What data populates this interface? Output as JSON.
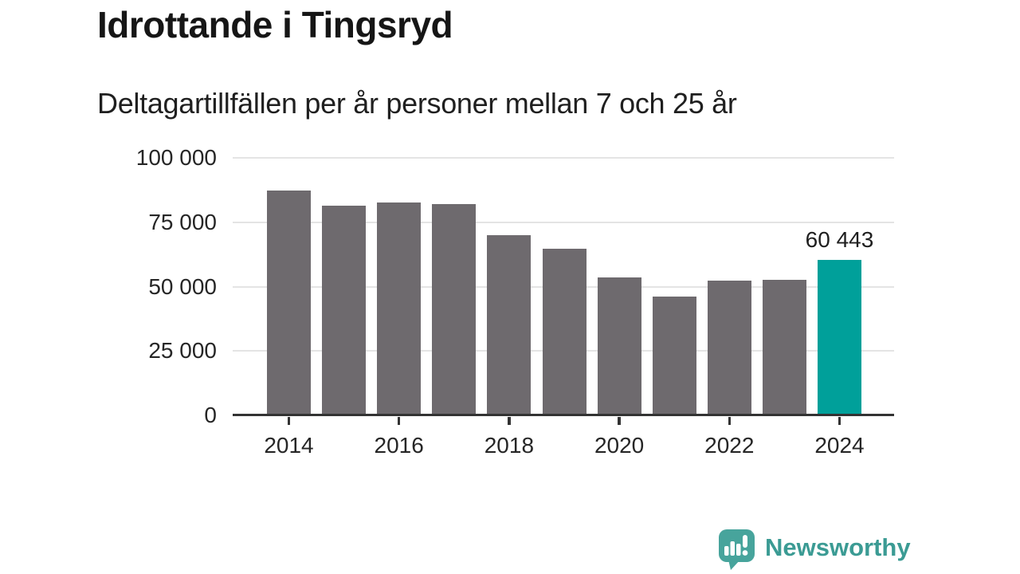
{
  "chart_data": {
    "type": "bar",
    "title": "Idrottande i Tingsryd",
    "subtitle": "Deltagartillfällen per år personer mellan 7 och 25 år",
    "categories": [
      "2014",
      "2015",
      "2016",
      "2017",
      "2018",
      "2019",
      "2020",
      "2021",
      "2022",
      "2023",
      "2024"
    ],
    "values": [
      87300,
      81500,
      82700,
      82100,
      69900,
      64600,
      53600,
      46000,
      52400,
      52700,
      60443
    ],
    "highlight_category": "2024",
    "highlight_index": 10,
    "annotation": {
      "text": "60 443",
      "category": "2024"
    },
    "ylim": [
      0,
      100000
    ],
    "yticks": [
      {
        "value": 0,
        "label": "0"
      },
      {
        "value": 25000,
        "label": "25 000"
      },
      {
        "value": 50000,
        "label": "50 000"
      },
      {
        "value": 75000,
        "label": "75 000"
      },
      {
        "value": 100000,
        "label": "100 000"
      }
    ],
    "xtick_years": [
      "2014",
      "2016",
      "2018",
      "2020",
      "2022",
      "2024"
    ],
    "grid": true,
    "legend": false,
    "colors": {
      "bar": "#6e6a6e",
      "highlight": "#00a09a",
      "grid": "#e4e4e4",
      "axis": "#333333",
      "text": "#262626"
    }
  },
  "footer": {
    "brand": "Newsworthy",
    "brand_color": "#3b9b94",
    "icon_color": "#47a49c"
  }
}
